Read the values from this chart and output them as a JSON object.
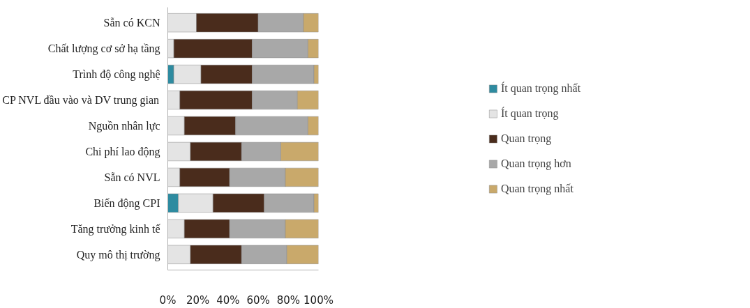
{
  "chart_data": {
    "type": "bar",
    "orientation": "horizontal",
    "stacked": true,
    "categories": [
      "Sẵn có KCN",
      "Chất lượng cơ sở hạ tầng",
      "Trình độ công nghệ",
      "CP NVL đầu vào và DV trung gian",
      "Nguồn nhân lực",
      "Chi phí lao động",
      "Sẵn có NVL",
      "Biến động CPI",
      "Tăng trưởng kinh tế",
      "Quy mô thị trường"
    ],
    "series": [
      {
        "name": "Ít quan trọng nhất",
        "color": "#2e8ba0",
        "values": [
          0,
          0,
          4,
          0,
          0,
          0,
          0,
          7,
          0,
          0
        ]
      },
      {
        "name": "Ít quan trọng",
        "color": "#e4e4e4",
        "values": [
          19,
          4,
          18,
          8,
          11,
          15,
          8,
          23,
          11,
          15
        ]
      },
      {
        "name": "Quan trọng",
        "color": "#4a2c1c",
        "values": [
          41,
          52,
          34,
          48,
          34,
          34,
          33,
          34,
          30,
          34
        ]
      },
      {
        "name": "Quan trọng hơn",
        "color": "#a8a8a8",
        "values": [
          30,
          37,
          41,
          30,
          48,
          26,
          37,
          33,
          37,
          30
        ]
      },
      {
        "name": "Quan trọng nhất",
        "color": "#c9a96b",
        "values": [
          10,
          7,
          3,
          14,
          7,
          25,
          22,
          3,
          22,
          21
        ]
      }
    ],
    "xlim": [
      0,
      100
    ],
    "xticks": [
      {
        "value": 0,
        "label": "0%"
      },
      {
        "value": 20,
        "label": "20%"
      },
      {
        "value": 40,
        "label": "40%"
      },
      {
        "value": 60,
        "label": "60%"
      },
      {
        "value": 80,
        "label": "80%"
      },
      {
        "value": 100,
        "label": "100%"
      }
    ],
    "grid": false,
    "legend": "right"
  }
}
